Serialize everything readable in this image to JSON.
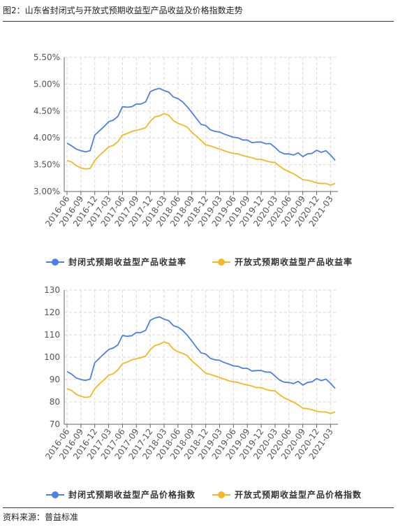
{
  "header": {
    "title": "图2：山东省封闭式与开放式预期收益型产品收益及价格指数走势"
  },
  "footer": {
    "source": "资料来源：普益标准"
  },
  "chart_data": [
    {
      "type": "line",
      "x": [
        "2016-06",
        "2016-07",
        "2016-08",
        "2016-09",
        "2016-10",
        "2016-11",
        "2016-12",
        "2017-01",
        "2017-02",
        "2017-03",
        "2017-04",
        "2017-05",
        "2017-06",
        "2017-07",
        "2017-08",
        "2017-09",
        "2017-10",
        "2017-11",
        "2017-12",
        "2018-01",
        "2018-02",
        "2018-03",
        "2018-04",
        "2018-05",
        "2018-06",
        "2018-07",
        "2018-08",
        "2018-09",
        "2018-10",
        "2018-11",
        "2018-12",
        "2019-01",
        "2019-02",
        "2019-03",
        "2019-04",
        "2019-05",
        "2019-06",
        "2019-07",
        "2019-08",
        "2019-09",
        "2019-10",
        "2019-11",
        "2019-12",
        "2020-01",
        "2020-02",
        "2020-03",
        "2020-04",
        "2020-05",
        "2020-06",
        "2020-07",
        "2020-08",
        "2020-09",
        "2020-10",
        "2020-11",
        "2020-12",
        "2021-01",
        "2021-02",
        "2021-03",
        "2021-04"
      ],
      "x_tick_labels": [
        "2016-06",
        "2016-09",
        "2016-12",
        "2017-03",
        "2017-06",
        "2017-09",
        "2017-12",
        "2018-03",
        "2018-06",
        "2018-09",
        "2018-12",
        "2019-03",
        "2019-06",
        "2019-09",
        "2019-12",
        "2020-03",
        "2020-06",
        "2020-09",
        "2020-12",
        "2021-03"
      ],
      "y_tick_labels": [
        "3.00%",
        "3.50%",
        "4.00%",
        "4.50%",
        "5.00%",
        "5.50%"
      ],
      "ylim": [
        3.0,
        5.5
      ],
      "grid": true,
      "legend_position": "bottom",
      "series": [
        {
          "name": "封闭式预期收益型产品收益率",
          "color": "#4e7fe6",
          "values": [
            3.9,
            3.85,
            3.79,
            3.76,
            3.74,
            3.76,
            4.05,
            4.13,
            4.21,
            4.3,
            4.33,
            4.4,
            4.58,
            4.57,
            4.58,
            4.63,
            4.63,
            4.67,
            4.86,
            4.9,
            4.92,
            4.88,
            4.85,
            4.76,
            4.73,
            4.67,
            4.58,
            4.47,
            4.36,
            4.25,
            4.23,
            4.15,
            4.12,
            4.11,
            4.07,
            4.04,
            4.01,
            4.0,
            3.96,
            3.96,
            3.91,
            3.92,
            3.92,
            3.89,
            3.89,
            3.82,
            3.74,
            3.7,
            3.7,
            3.68,
            3.72,
            3.65,
            3.7,
            3.71,
            3.77,
            3.73,
            3.76,
            3.68,
            3.58
          ]
        },
        {
          "name": "开放式预期收益型产品收益率",
          "color": "#f5b823",
          "values": [
            3.58,
            3.55,
            3.48,
            3.44,
            3.42,
            3.43,
            3.58,
            3.67,
            3.75,
            3.83,
            3.86,
            3.93,
            4.05,
            4.08,
            4.12,
            4.14,
            4.16,
            4.19,
            4.31,
            4.39,
            4.41,
            4.45,
            4.42,
            4.32,
            4.27,
            4.24,
            4.2,
            4.1,
            4.03,
            3.95,
            3.87,
            3.85,
            3.82,
            3.79,
            3.76,
            3.73,
            3.71,
            3.7,
            3.67,
            3.65,
            3.63,
            3.6,
            3.6,
            3.57,
            3.55,
            3.54,
            3.47,
            3.41,
            3.37,
            3.33,
            3.28,
            3.22,
            3.21,
            3.19,
            3.16,
            3.15,
            3.15,
            3.12,
            3.15
          ]
        }
      ]
    },
    {
      "type": "line",
      "x": [
        "2016-06",
        "2016-07",
        "2016-08",
        "2016-09",
        "2016-10",
        "2016-11",
        "2016-12",
        "2017-01",
        "2017-02",
        "2017-03",
        "2017-04",
        "2017-05",
        "2017-06",
        "2017-07",
        "2017-08",
        "2017-09",
        "2017-10",
        "2017-11",
        "2017-12",
        "2018-01",
        "2018-02",
        "2018-03",
        "2018-04",
        "2018-05",
        "2018-06",
        "2018-07",
        "2018-08",
        "2018-09",
        "2018-10",
        "2018-11",
        "2018-12",
        "2019-01",
        "2019-02",
        "2019-03",
        "2019-04",
        "2019-05",
        "2019-06",
        "2019-07",
        "2019-08",
        "2019-09",
        "2019-10",
        "2019-11",
        "2019-12",
        "2020-01",
        "2020-02",
        "2020-03",
        "2020-04",
        "2020-05",
        "2020-06",
        "2020-07",
        "2020-08",
        "2020-09",
        "2020-10",
        "2020-11",
        "2020-12",
        "2021-01",
        "2021-02",
        "2021-03",
        "2021-04"
      ],
      "x_tick_labels": [
        "2016-06",
        "2016-09",
        "2016-12",
        "2017-03",
        "2017-06",
        "2017-09",
        "2017-12",
        "2018-03",
        "2018-06",
        "2018-09",
        "2018-12",
        "2019-03",
        "2019-06",
        "2019-09",
        "2019-12",
        "2020-03",
        "2020-06",
        "2020-09",
        "2020-12",
        "2021-03"
      ],
      "y_tick_labels": [
        "70",
        "80",
        "90",
        "100",
        "110",
        "120",
        "130"
      ],
      "ylim": [
        70,
        130
      ],
      "grid": true,
      "legend_position": "bottom",
      "series": [
        {
          "name": "封闭式预期收益型产品价格指数",
          "color": "#4e7fe6",
          "values": [
            93.6,
            92.4,
            90.7,
            90.0,
            89.6,
            90.2,
            97.5,
            99.5,
            101.5,
            103.4,
            104.1,
            105.5,
            109.7,
            109.3,
            109.6,
            111.0,
            111.0,
            112.0,
            116.5,
            117.5,
            118.0,
            117.0,
            116.3,
            114.1,
            113.4,
            112.0,
            109.8,
            107.2,
            104.4,
            101.9,
            101.4,
            99.5,
            98.8,
            98.6,
            97.6,
            96.9,
            96.1,
            95.9,
            95.0,
            95.0,
            93.8,
            94.0,
            94.0,
            93.3,
            93.3,
            91.6,
            89.7,
            88.8,
            88.7,
            88.2,
            89.2,
            87.5,
            88.7,
            89.0,
            90.4,
            89.5,
            90.2,
            88.3,
            86.0
          ]
        },
        {
          "name": "开放式预期收益型产品价格指数",
          "color": "#f5b823",
          "values": [
            85.9,
            85.1,
            83.4,
            82.5,
            82.0,
            82.3,
            85.9,
            88.0,
            89.9,
            91.9,
            92.6,
            94.3,
            97.1,
            97.8,
            98.8,
            99.3,
            99.8,
            100.5,
            103.4,
            105.2,
            105.8,
            106.8,
            106.1,
            103.6,
            102.4,
            101.7,
            100.7,
            98.3,
            96.6,
            94.7,
            92.8,
            92.3,
            91.6,
            90.9,
            90.2,
            89.4,
            89.0,
            88.7,
            88.0,
            87.6,
            87.1,
            86.4,
            86.4,
            85.6,
            85.1,
            84.9,
            83.2,
            81.8,
            80.8,
            79.9,
            78.7,
            77.2,
            77.0,
            76.5,
            75.8,
            75.5,
            75.5,
            74.8,
            75.5
          ]
        }
      ]
    }
  ]
}
